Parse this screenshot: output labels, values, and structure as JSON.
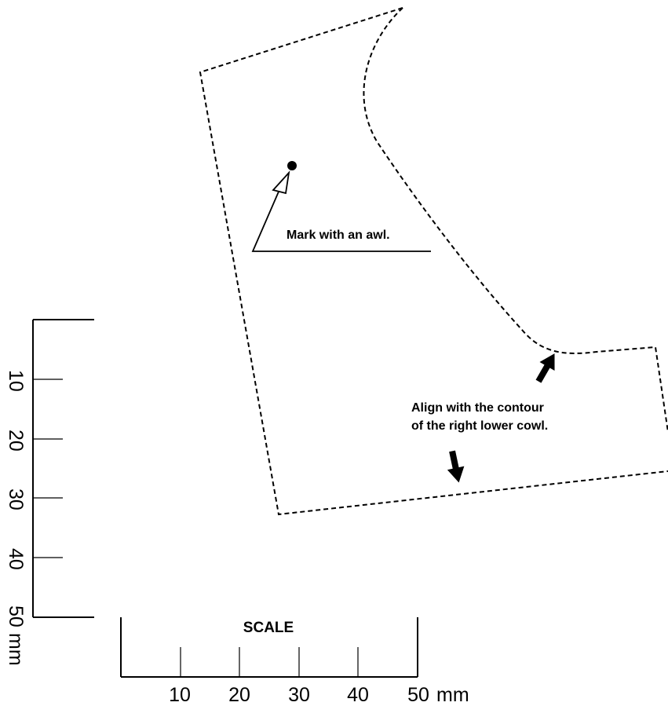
{
  "annotations": {
    "mark": "Mark with an awl.",
    "align_line1": "Align with the contour",
    "align_line2": "of the right lower cowl."
  },
  "scale": {
    "title": "SCALE",
    "horizontal": {
      "ticks": [
        "10",
        "20",
        "30",
        "40",
        "50"
      ],
      "unit": "mm"
    },
    "vertical": {
      "ticks": [
        "10",
        "20",
        "30",
        "40",
        "50"
      ],
      "unit": "mm"
    }
  }
}
